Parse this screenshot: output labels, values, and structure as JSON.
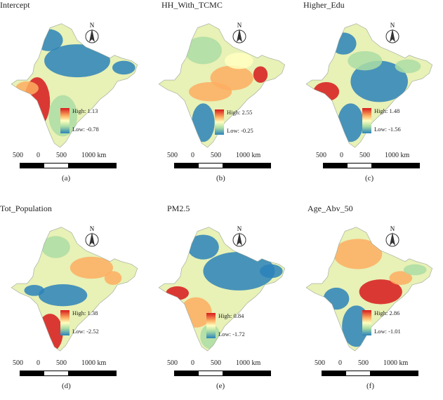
{
  "panels": [
    {
      "title": "Intercept",
      "high": "High:  1.13",
      "low": "Low:  -0.78",
      "label": "(a)",
      "tint": "intercept"
    },
    {
      "title": "HH_With_TCMC",
      "high": "High:  2.55",
      "low": "Low:  -0.25",
      "label": "(b)",
      "tint": "hh"
    },
    {
      "title": "Higher_Edu",
      "high": "High:  1.48",
      "low": "Low:  -1.56",
      "label": "(c)",
      "tint": "edu"
    },
    {
      "title": "Tot_Population",
      "high": "High: 1.38",
      "low": "Low:  -2.52",
      "label": "(d)",
      "tint": "pop"
    },
    {
      "title": "PM2.5",
      "high": "High:  0.84",
      "low": "Low:  -1.72",
      "label": "(e)",
      "tint": "pm"
    },
    {
      "title": "Age_Abv_50",
      "high": "High:  2.86",
      "low": "Low:  -1.01",
      "label": "(f)",
      "tint": "age"
    }
  ],
  "scale_bar": {
    "left": "500",
    "zero": "0",
    "mid": "500",
    "right": "1000 km"
  },
  "north_label": "N",
  "colors": {
    "high": "#d7191c",
    "mid": "#ffffbf",
    "low": "#2b83ba"
  }
}
